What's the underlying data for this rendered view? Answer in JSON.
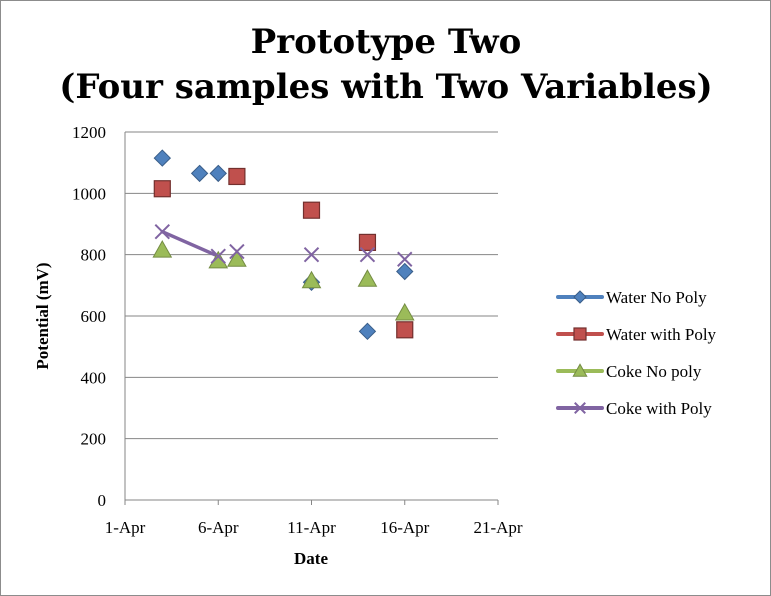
{
  "chart_data": {
    "type": "scatter",
    "title_lines": [
      "Prototype Two",
      "(Four samples with Two Variables)"
    ],
    "xlabel": "Date",
    "ylabel": "Potential (mV)",
    "x_axis": {
      "type": "date",
      "min": "2013-04-01",
      "max": "2013-04-21",
      "ticks": [
        {
          "value": "2013-04-01",
          "label": "1-Apr"
        },
        {
          "value": "2013-04-06",
          "label": "6-Apr"
        },
        {
          "value": "2013-04-11",
          "label": "11-Apr"
        },
        {
          "value": "2013-04-16",
          "label": "16-Apr"
        },
        {
          "value": "2013-04-21",
          "label": "21-Apr"
        }
      ]
    },
    "ylim": [
      0,
      1200
    ],
    "y_ticks": [
      0,
      200,
      400,
      600,
      800,
      1000,
      1200
    ],
    "grid": "horizontal",
    "legend_position": "right",
    "series": [
      {
        "name": "Water No Poly",
        "marker": "diamond",
        "color": "#4f81bd",
        "points": [
          {
            "x": "2013-04-03",
            "y": 1115
          },
          {
            "x": "2013-04-05",
            "y": 1065
          },
          {
            "x": "2013-04-06",
            "y": 1065
          },
          {
            "x": "2013-04-11",
            "y": 710
          },
          {
            "x": "2013-04-14",
            "y": 550
          },
          {
            "x": "2013-04-16",
            "y": 745
          }
        ]
      },
      {
        "name": "Water with Poly",
        "marker": "square",
        "color": "#c0504d",
        "points": [
          {
            "x": "2013-04-03",
            "y": 1015
          },
          {
            "x": "2013-04-07",
            "y": 1055
          },
          {
            "x": "2013-04-11",
            "y": 945
          },
          {
            "x": "2013-04-14",
            "y": 840
          },
          {
            "x": "2013-04-16",
            "y": 555
          }
        ]
      },
      {
        "name": "Coke No poly",
        "marker": "triangle",
        "color": "#9bbb59",
        "points": [
          {
            "x": "2013-04-03",
            "y": 815
          },
          {
            "x": "2013-04-06",
            "y": 780
          },
          {
            "x": "2013-04-07",
            "y": 785
          },
          {
            "x": "2013-04-11",
            "y": 715
          },
          {
            "x": "2013-04-14",
            "y": 720
          },
          {
            "x": "2013-04-16",
            "y": 610
          }
        ]
      },
      {
        "name": "Coke with Poly",
        "marker": "x",
        "color": "#8064a2",
        "line_segment": [
          0,
          1
        ],
        "points": [
          {
            "x": "2013-04-03",
            "y": 875
          },
          {
            "x": "2013-04-06",
            "y": 795
          },
          {
            "x": "2013-04-07",
            "y": 810
          },
          {
            "x": "2013-04-11",
            "y": 800
          },
          {
            "x": "2013-04-14",
            "y": 800
          },
          {
            "x": "2013-04-16",
            "y": 785
          }
        ]
      }
    ]
  }
}
